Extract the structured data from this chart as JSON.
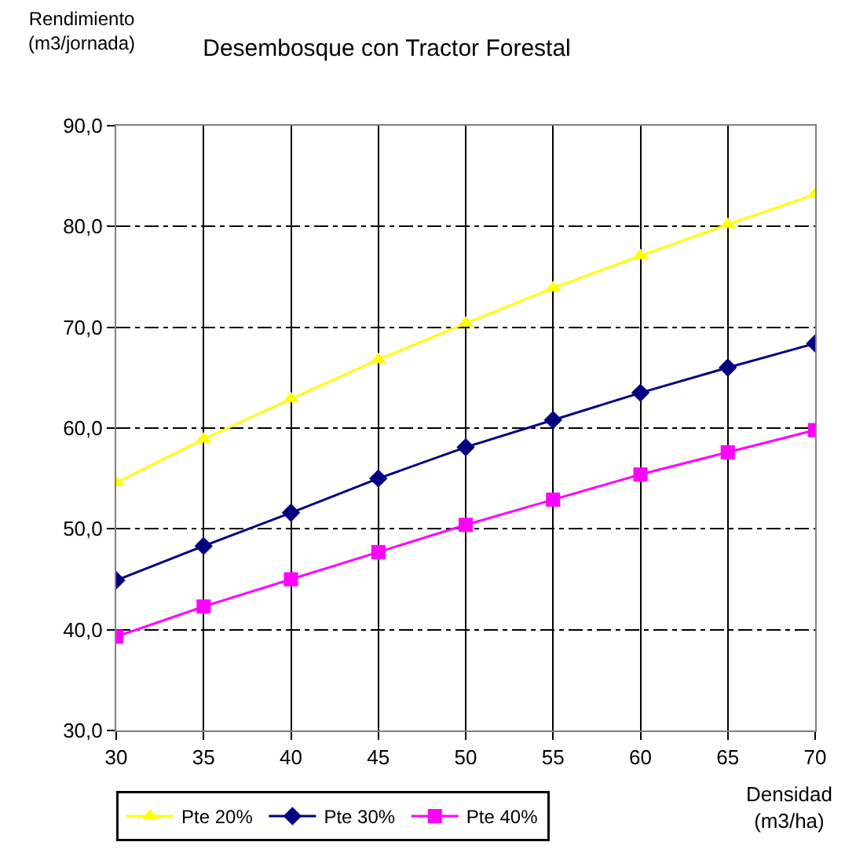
{
  "chart_data": {
    "type": "line",
    "title": "Desembosque con Tractor Forestal",
    "xlabel": "Densidad (m3/ha)",
    "ylabel": "Rendimiento (m3/jornada)",
    "x": [
      30,
      35,
      40,
      45,
      50,
      55,
      60,
      65,
      70
    ],
    "series": [
      {
        "name": "Pte 20%",
        "color": "#ffff00",
        "marker": "triangle",
        "values": [
          54.6,
          58.9,
          62.9,
          66.8,
          70.4,
          73.9,
          77.1,
          80.2,
          83.2
        ]
      },
      {
        "name": "Pte 30%",
        "color": "#000080",
        "marker": "diamond",
        "values": [
          44.9,
          48.3,
          51.6,
          55.0,
          58.1,
          60.8,
          63.5,
          66.0,
          68.4
        ]
      },
      {
        "name": "Pte 40%",
        "color": "#ff00ff",
        "marker": "square",
        "values": [
          39.3,
          42.3,
          45.0,
          47.7,
          50.4,
          52.9,
          55.4,
          57.6,
          59.8
        ]
      }
    ],
    "xlim": [
      30,
      70
    ],
    "xticks": [
      30,
      35,
      40,
      45,
      50,
      55,
      60,
      65,
      70
    ],
    "ylim": [
      30,
      90
    ],
    "yticks": [
      {
        "value": 30,
        "label": "30,0"
      },
      {
        "value": 40,
        "label": "40,0"
      },
      {
        "value": 50,
        "label": "50,0"
      },
      {
        "value": 60,
        "label": "60,0"
      },
      {
        "value": 70,
        "label": "70,0"
      },
      {
        "value": 80,
        "label": "80,0"
      },
      {
        "value": 90,
        "label": "90,0"
      }
    ],
    "grid": true,
    "legend": "bottom",
    "line_style": "solid"
  }
}
